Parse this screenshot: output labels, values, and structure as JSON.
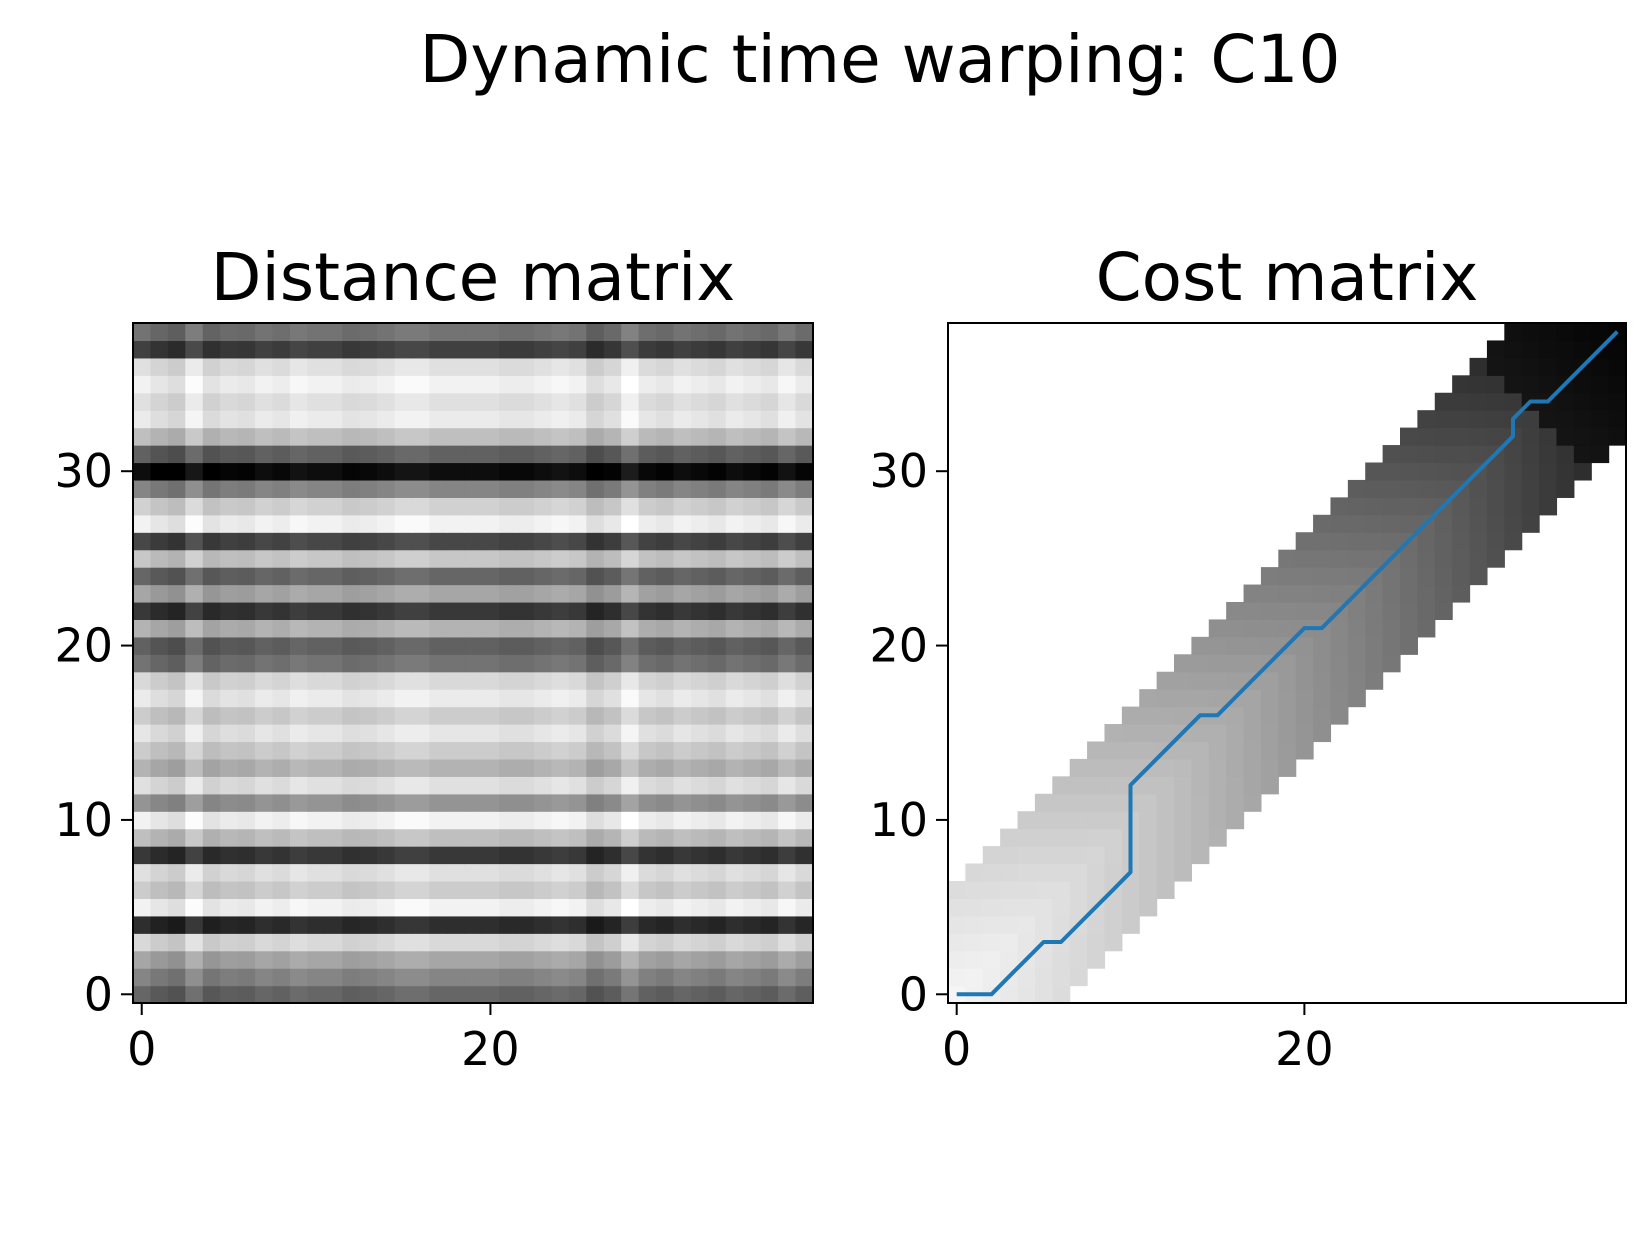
{
  "figure": {
    "title": "Dynamic time warping: C10"
  },
  "chart_data": [
    {
      "type": "heatmap",
      "title": "Distance matrix",
      "xlabel": "",
      "ylabel": "",
      "n_cols": 39,
      "n_rows": 39,
      "xlim": [
        -0.5,
        38.5
      ],
      "ylim": [
        -0.5,
        38.5
      ],
      "xticks": [
        0,
        20
      ],
      "yticks": [
        0,
        10,
        20,
        30
      ],
      "colormap": "gray_r",
      "grid": false,
      "notes": "Shading per row (darkness 0..1, row 0 at bottom); columns add a small per-column variation.",
      "row_darkness": [
        0.6,
        0.48,
        0.35,
        0.15,
        0.82,
        0.05,
        0.2,
        0.12,
        0.78,
        0.25,
        0.05,
        0.42,
        0.12,
        0.3,
        0.2,
        0.1,
        0.2,
        0.08,
        0.15,
        0.55,
        0.62,
        0.3,
        0.78,
        0.35,
        0.6,
        0.22,
        0.72,
        0.05,
        0.18,
        0.48,
        0.95,
        0.62,
        0.25,
        0.08,
        0.12,
        0.05,
        0.12,
        0.75,
        0.55
      ],
      "col_offset": [
        0.0,
        0.05,
        0.08,
        -0.04,
        0.06,
        0.03,
        0.04,
        0.0,
        0.02,
        -0.02,
        0.0,
        0.0,
        0.03,
        0.02,
        0.0,
        -0.03,
        -0.03,
        0.0,
        0.0,
        0.0,
        0.0,
        0.02,
        0.02,
        0.0,
        -0.02,
        0.0,
        0.08,
        0.04,
        -0.06,
        0.02,
        0.04,
        0.0,
        0.02,
        0.04,
        0.0,
        0.02,
        0.04,
        -0.02,
        0.03
      ]
    },
    {
      "type": "heatmap",
      "title": "Cost matrix",
      "xlabel": "",
      "ylabel": "",
      "n_cols": 39,
      "n_rows": 39,
      "xlim": [
        -0.5,
        38.5
      ],
      "ylim": [
        -0.5,
        38.5
      ],
      "xticks": [
        0,
        20
      ],
      "yticks": [
        0,
        10,
        20,
        30
      ],
      "colormap": "gray_r",
      "grid": false,
      "band_window": 6,
      "band_color": "white outside window",
      "warping_path": {
        "color": "#1f77b4",
        "points": [
          [
            0,
            0
          ],
          [
            1,
            0
          ],
          [
            2,
            0
          ],
          [
            3,
            1
          ],
          [
            4,
            2
          ],
          [
            5,
            3
          ],
          [
            6,
            3
          ],
          [
            7,
            4
          ],
          [
            8,
            5
          ],
          [
            9,
            6
          ],
          [
            10,
            7
          ],
          [
            10,
            8
          ],
          [
            10,
            9
          ],
          [
            10,
            10
          ],
          [
            10,
            11
          ],
          [
            10,
            12
          ],
          [
            11,
            13
          ],
          [
            12,
            14
          ],
          [
            13,
            15
          ],
          [
            14,
            16
          ],
          [
            15,
            16
          ],
          [
            16,
            17
          ],
          [
            17,
            18
          ],
          [
            18,
            19
          ],
          [
            19,
            20
          ],
          [
            20,
            21
          ],
          [
            21,
            21
          ],
          [
            22,
            22
          ],
          [
            23,
            23
          ],
          [
            24,
            24
          ],
          [
            25,
            25
          ],
          [
            26,
            26
          ],
          [
            27,
            27
          ],
          [
            28,
            28
          ],
          [
            29,
            29
          ],
          [
            30,
            30
          ],
          [
            31,
            31
          ],
          [
            32,
            32
          ],
          [
            32,
            33
          ],
          [
            33,
            34
          ],
          [
            34,
            34
          ],
          [
            35,
            35
          ],
          [
            36,
            36
          ],
          [
            37,
            37
          ],
          [
            38,
            38
          ]
        ]
      }
    }
  ]
}
